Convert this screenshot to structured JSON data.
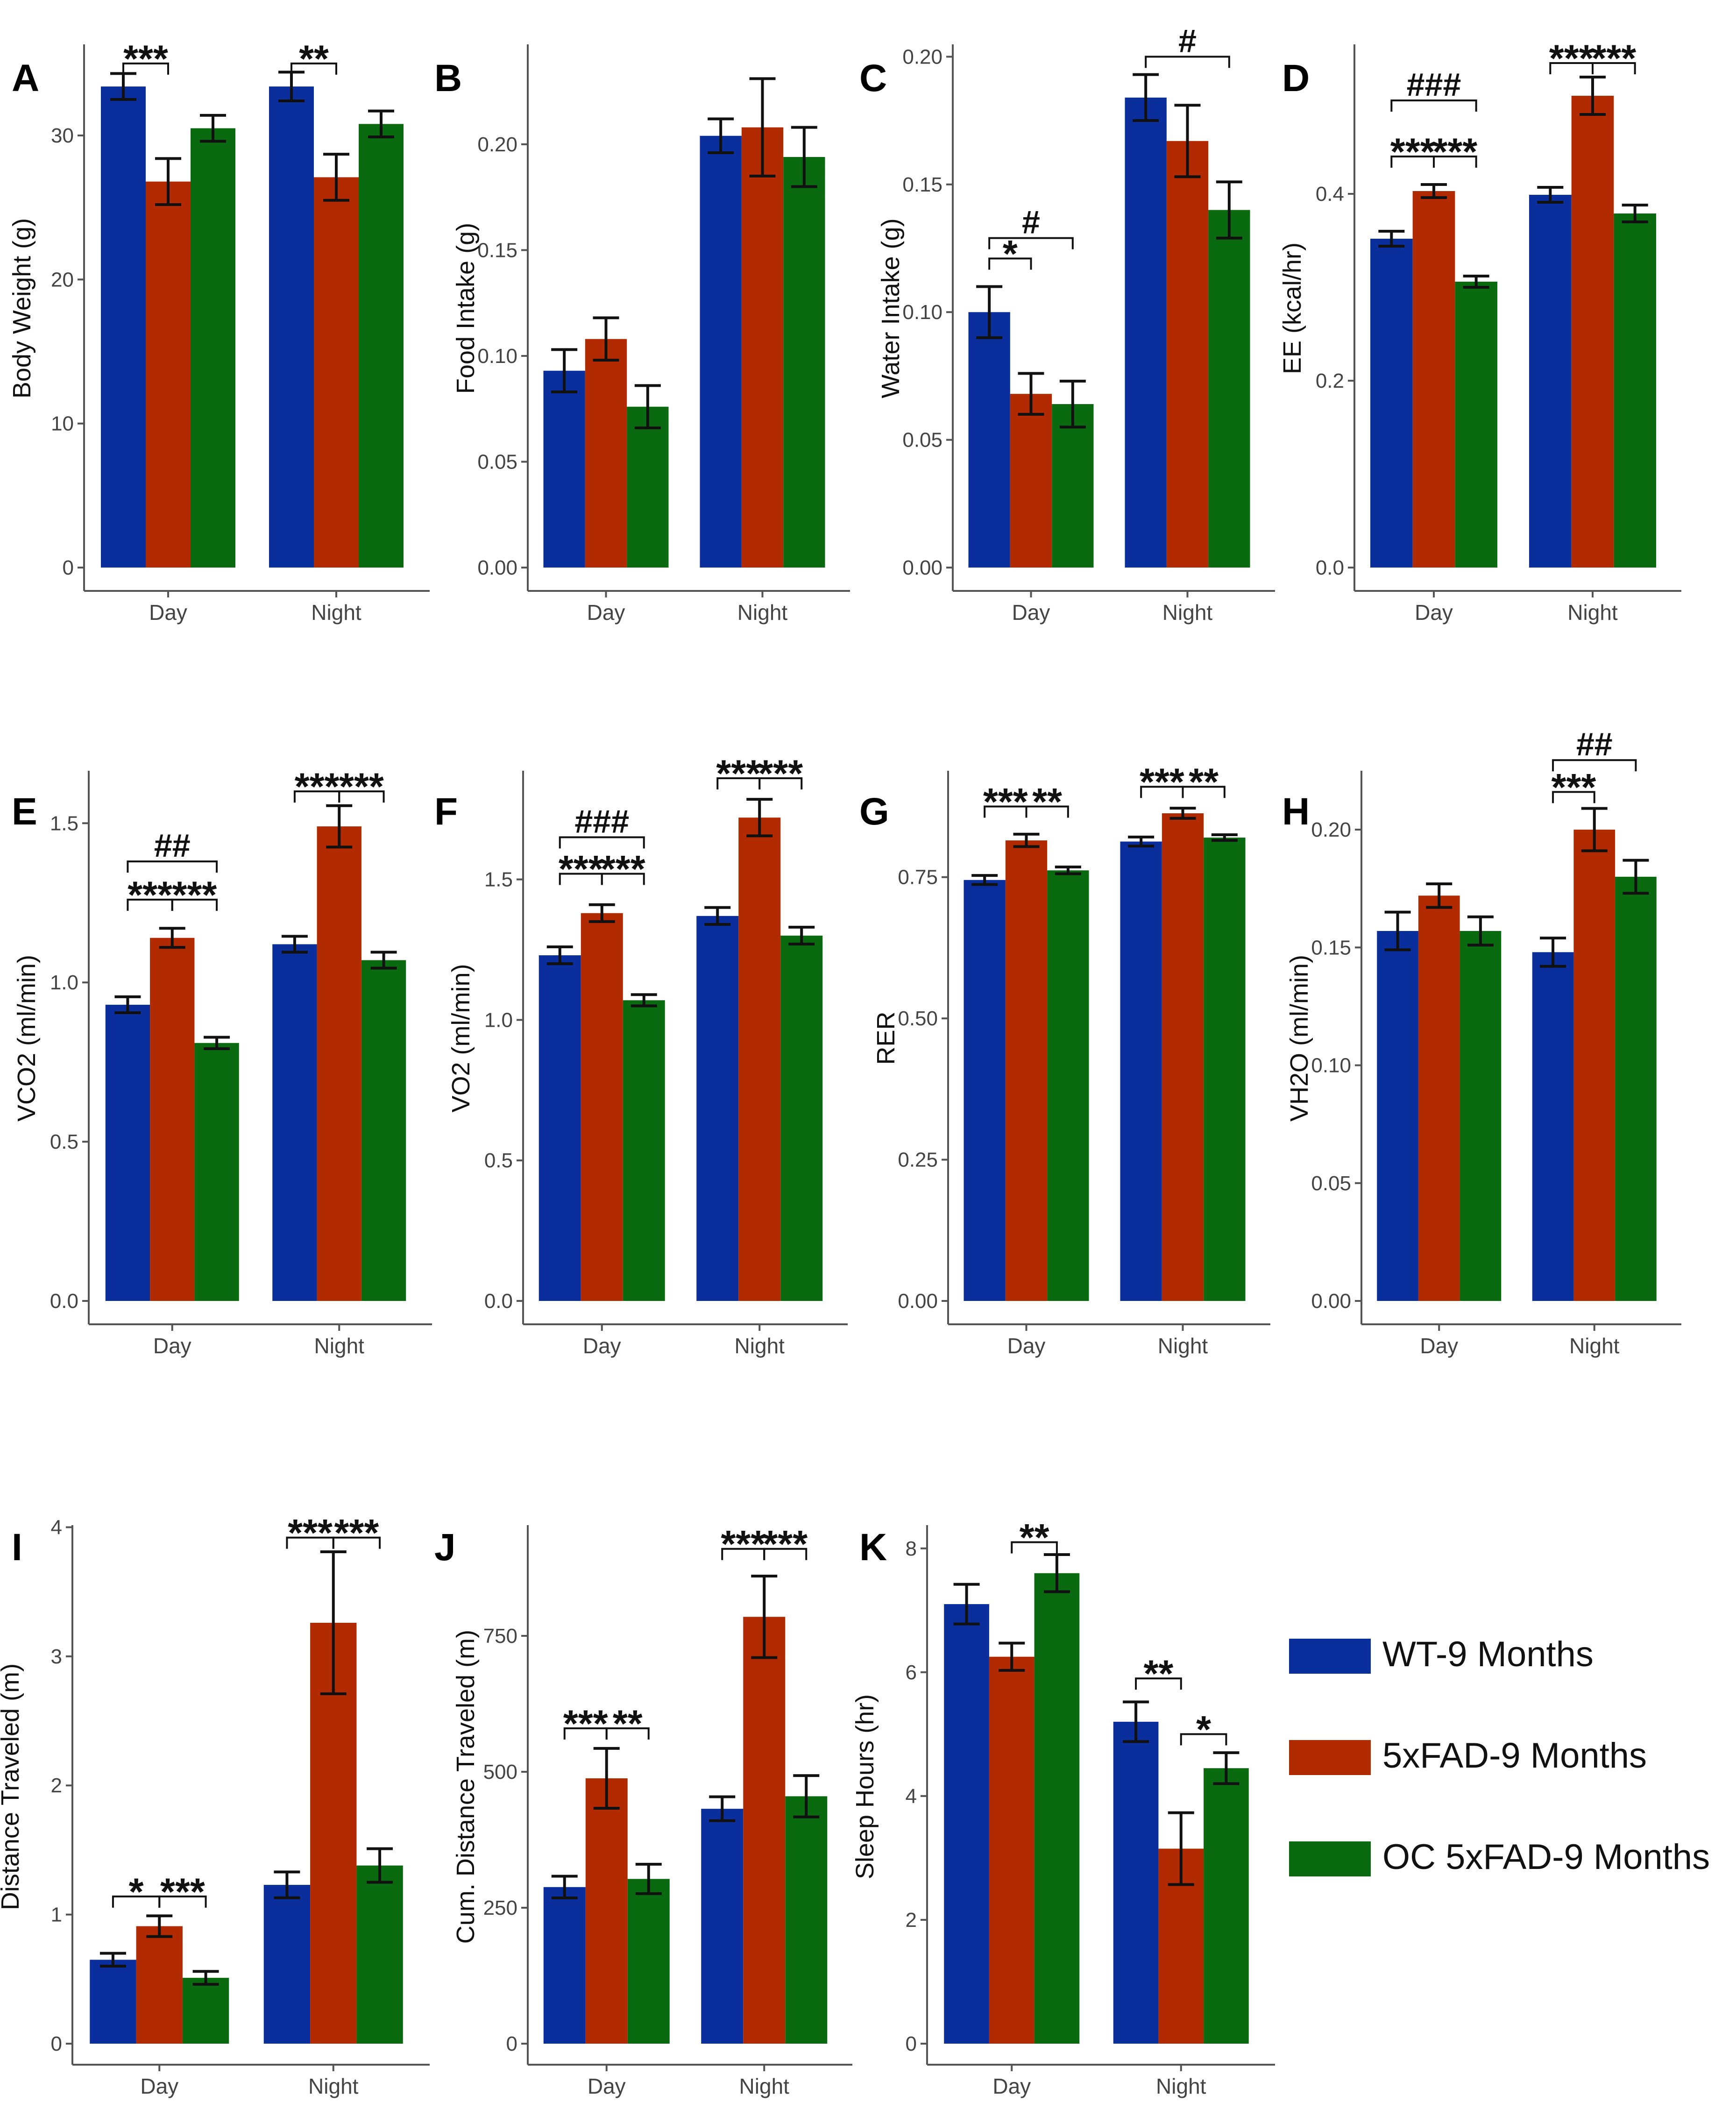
{
  "legend": {
    "items": [
      {
        "label": "WT-9 Months",
        "color": "#0A2F9C"
      },
      {
        "label": "5xFAD-9 Months",
        "color": "#B22A00"
      },
      {
        "label": "OC 5xFAD-9 Months",
        "color": "#0A6A10"
      }
    ]
  },
  "chart_data": [
    {
      "panel": "A",
      "type": "bar",
      "categories": [
        "Day",
        "Night"
      ],
      "ylabel": "Body Weight (g)",
      "ylim": [
        0,
        36
      ],
      "yticks": [
        0,
        10,
        20,
        30
      ],
      "yticklabels": [
        "0",
        "10",
        "20",
        "30"
      ],
      "series": [
        {
          "values": [
            33.4,
            33.4
          ],
          "err": [
            0.9,
            1.0
          ]
        },
        {
          "values": [
            26.8,
            27.1
          ],
          "err": [
            1.6,
            1.6
          ]
        },
        {
          "values": [
            30.5,
            30.8
          ],
          "err": [
            0.9,
            0.9
          ]
        }
      ],
      "annotations": [
        {
          "text": "***",
          "category": 0,
          "from": 0,
          "to": 1,
          "y": 35.0
        },
        {
          "text": "**",
          "category": 1,
          "from": 0,
          "to": 1,
          "y": 35.0
        }
      ]
    },
    {
      "panel": "B",
      "type": "bar",
      "categories": [
        "Day",
        "Night"
      ],
      "ylabel": "Food Intake (g)",
      "ylim": [
        0,
        0.245
      ],
      "yticks": [
        0,
        0.05,
        0.1,
        0.15,
        0.2
      ],
      "yticklabels": [
        "0.00",
        "0.05",
        "0.10",
        "0.15",
        "0.20"
      ],
      "series": [
        {
          "values": [
            0.093,
            0.204
          ],
          "err": [
            0.01,
            0.008
          ]
        },
        {
          "values": [
            0.108,
            0.208
          ],
          "err": [
            0.01,
            0.023
          ]
        },
        {
          "values": [
            0.076,
            0.194
          ],
          "err": [
            0.01,
            0.014
          ]
        }
      ],
      "annotations": []
    },
    {
      "panel": "C",
      "type": "bar",
      "categories": [
        "Day",
        "Night"
      ],
      "ylabel": "Water Intake (g)",
      "ylim": [
        0,
        0.203
      ],
      "yticks": [
        0,
        0.05,
        0.1,
        0.15,
        0.2
      ],
      "yticklabels": [
        "0.00",
        "0.05",
        "0.10",
        "0.15",
        "0.20"
      ],
      "series": [
        {
          "values": [
            0.1,
            0.184
          ],
          "err": [
            0.01,
            0.009
          ]
        },
        {
          "values": [
            0.068,
            0.167
          ],
          "err": [
            0.008,
            0.014
          ]
        },
        {
          "values": [
            0.064,
            0.14
          ],
          "err": [
            0.009,
            0.011
          ]
        }
      ],
      "annotations": [
        {
          "text": "*",
          "category": 0,
          "from": 0,
          "to": 1,
          "y": 0.121
        },
        {
          "text": "#",
          "category": 0,
          "from": 0,
          "to": 2,
          "y": 0.129
        },
        {
          "text": "#",
          "category": 1,
          "from": 0,
          "to": 2,
          "y": 0.2
        }
      ]
    },
    {
      "panel": "D",
      "type": "bar",
      "categories": [
        "Day",
        "Night"
      ],
      "ylabel": "EE (kcal/hr)",
      "ylim": [
        0,
        0.555
      ],
      "yticks": [
        0,
        0.2,
        0.4
      ],
      "yticklabels": [
        "0.0",
        "0.2",
        "0.4"
      ],
      "series": [
        {
          "values": [
            0.352,
            0.399
          ],
          "err": [
            0.008,
            0.008
          ]
        },
        {
          "values": [
            0.403,
            0.505
          ],
          "err": [
            0.007,
            0.02
          ]
        },
        {
          "values": [
            0.306,
            0.379
          ],
          "err": [
            0.006,
            0.009
          ]
        }
      ],
      "annotations": [
        {
          "text": "***",
          "category": 0,
          "from": 0,
          "to": 1,
          "y": 0.44
        },
        {
          "text": "***",
          "category": 0,
          "from": 1,
          "to": 2,
          "y": 0.44
        },
        {
          "text": "###",
          "category": 0,
          "from": 0,
          "to": 2,
          "y": 0.5
        },
        {
          "text": "***",
          "category": 1,
          "from": 0,
          "to": 1,
          "y": 0.54
        },
        {
          "text": "***",
          "category": 1,
          "from": 1,
          "to": 2,
          "y": 0.54
        }
      ]
    },
    {
      "panel": "E",
      "type": "bar",
      "categories": [
        "Day",
        "Night"
      ],
      "ylabel": "VCO2 (ml/min)",
      "ylim": [
        0,
        1.65
      ],
      "yticks": [
        0,
        0.5,
        1.0,
        1.5
      ],
      "yticklabels": [
        "0.0",
        "0.5",
        "1.0",
        "1.5"
      ],
      "series": [
        {
          "values": [
            0.93,
            1.12
          ],
          "err": [
            0.025,
            0.025
          ]
        },
        {
          "values": [
            1.14,
            1.49
          ],
          "err": [
            0.03,
            0.065
          ]
        },
        {
          "values": [
            0.81,
            1.07
          ],
          "err": [
            0.018,
            0.025
          ]
        }
      ],
      "annotations": [
        {
          "text": "***",
          "category": 0,
          "from": 0,
          "to": 1,
          "y": 1.26
        },
        {
          "text": "***",
          "category": 0,
          "from": 1,
          "to": 2,
          "y": 1.26
        },
        {
          "text": "##",
          "category": 0,
          "from": 0,
          "to": 2,
          "y": 1.38
        },
        {
          "text": "***",
          "category": 1,
          "from": 0,
          "to": 1,
          "y": 1.6
        },
        {
          "text": "***",
          "category": 1,
          "from": 1,
          "to": 2,
          "y": 1.6
        }
      ]
    },
    {
      "panel": "F",
      "type": "bar",
      "categories": [
        "Day",
        "Night"
      ],
      "ylabel": "VO2 (ml/min)",
      "ylim": [
        0,
        1.87
      ],
      "yticks": [
        0,
        0.5,
        1.0,
        1.5
      ],
      "yticklabels": [
        "0.0",
        "0.5",
        "1.0",
        "1.5"
      ],
      "series": [
        {
          "values": [
            1.23,
            1.37
          ],
          "err": [
            0.03,
            0.03
          ]
        },
        {
          "values": [
            1.38,
            1.72
          ],
          "err": [
            0.03,
            0.065
          ]
        },
        {
          "values": [
            1.07,
            1.3
          ],
          "err": [
            0.02,
            0.03
          ]
        }
      ],
      "annotations": [
        {
          "text": "***",
          "category": 0,
          "from": 0,
          "to": 1,
          "y": 1.52
        },
        {
          "text": "***",
          "category": 0,
          "from": 1,
          "to": 2,
          "y": 1.52
        },
        {
          "text": "###",
          "category": 0,
          "from": 0,
          "to": 2,
          "y": 1.65
        },
        {
          "text": "***",
          "category": 1,
          "from": 0,
          "to": 1,
          "y": 1.86
        },
        {
          "text": "***",
          "category": 1,
          "from": 1,
          "to": 2,
          "y": 1.86
        }
      ]
    },
    {
      "panel": "G",
      "type": "bar",
      "categories": [
        "Day",
        "Night"
      ],
      "ylabel": "RER",
      "ylim": [
        0,
        0.93
      ],
      "yticks": [
        0,
        0.25,
        0.5,
        0.75
      ],
      "yticklabels": [
        "0.00",
        "0.25",
        "0.50",
        "0.75"
      ],
      "series": [
        {
          "values": [
            0.745,
            0.813
          ],
          "err": [
            0.008,
            0.008
          ]
        },
        {
          "values": [
            0.815,
            0.863
          ],
          "err": [
            0.011,
            0.009
          ]
        },
        {
          "values": [
            0.762,
            0.82
          ],
          "err": [
            0.006,
            0.005
          ]
        }
      ],
      "annotations": [
        {
          "text": "***",
          "category": 0,
          "from": 0,
          "to": 1,
          "y": 0.875
        },
        {
          "text": "**",
          "category": 0,
          "from": 1,
          "to": 2,
          "y": 0.875
        },
        {
          "text": "***",
          "category": 1,
          "from": 0,
          "to": 1,
          "y": 0.91
        },
        {
          "text": "**",
          "category": 1,
          "from": 1,
          "to": 2,
          "y": 0.91
        }
      ]
    },
    {
      "panel": "H",
      "type": "bar",
      "categories": [
        "Day",
        "Night"
      ],
      "ylabel": "VH2O (ml/min)",
      "ylim": [
        0,
        0.223
      ],
      "yticks": [
        0,
        0.05,
        0.1,
        0.15,
        0.2
      ],
      "yticklabels": [
        "0.00",
        "0.05",
        "0.10",
        "0.15",
        "0.20"
      ],
      "series": [
        {
          "values": [
            0.157,
            0.148
          ],
          "err": [
            0.008,
            0.006
          ]
        },
        {
          "values": [
            0.172,
            0.2
          ],
          "err": [
            0.005,
            0.009
          ]
        },
        {
          "values": [
            0.157,
            0.18
          ],
          "err": [
            0.006,
            0.007
          ]
        }
      ],
      "annotations": [
        {
          "text": "***",
          "category": 1,
          "from": 0,
          "to": 1,
          "y": 0.216
        },
        {
          "text": "##",
          "category": 1,
          "from": 0,
          "to": 2,
          "y": 0.2295
        }
      ]
    },
    {
      "panel": "I",
      "type": "bar",
      "categories": [
        "Day",
        "Night"
      ],
      "ylabel": "Distance Traveled (m)",
      "ylim": [
        0,
        3.98
      ],
      "yticks": [
        0,
        1,
        2,
        3,
        4
      ],
      "yticklabels": [
        "0",
        "1",
        "2",
        "3",
        "4"
      ],
      "series": [
        {
          "values": [
            0.65,
            1.23
          ],
          "err": [
            0.05,
            0.1
          ]
        },
        {
          "values": [
            0.91,
            3.26
          ],
          "err": [
            0.08,
            0.55
          ]
        },
        {
          "values": [
            0.51,
            1.38
          ],
          "err": [
            0.05,
            0.13
          ]
        }
      ],
      "annotations": [
        {
          "text": "*",
          "category": 0,
          "from": 0,
          "to": 1,
          "y": 1.14
        },
        {
          "text": "***",
          "category": 0,
          "from": 1,
          "to": 2,
          "y": 1.14
        },
        {
          "text": "***",
          "category": 1,
          "from": 0,
          "to": 1,
          "y": 3.92
        },
        {
          "text": "***",
          "category": 1,
          "from": 1,
          "to": 2,
          "y": 3.92
        }
      ]
    },
    {
      "panel": "J",
      "type": "bar",
      "categories": [
        "Day",
        "Night"
      ],
      "ylabel": "Cum. Distance Traveled (m)",
      "ylim": [
        0,
        945
      ],
      "yticks": [
        0,
        250,
        500,
        750
      ],
      "yticklabels": [
        "0",
        "250",
        "500",
        "750"
      ],
      "series": [
        {
          "values": [
            288,
            432
          ],
          "err": [
            20,
            22
          ]
        },
        {
          "values": [
            488,
            785
          ],
          "err": [
            55,
            75
          ]
        },
        {
          "values": [
            303,
            455
          ],
          "err": [
            27,
            38
          ]
        }
      ],
      "annotations": [
        {
          "text": "***",
          "category": 0,
          "from": 0,
          "to": 1,
          "y": 580
        },
        {
          "text": "**",
          "category": 0,
          "from": 1,
          "to": 2,
          "y": 580
        },
        {
          "text": "***",
          "category": 1,
          "from": 0,
          "to": 1,
          "y": 910
        },
        {
          "text": "***",
          "category": 1,
          "from": 1,
          "to": 2,
          "y": 910
        }
      ]
    },
    {
      "panel": "K",
      "type": "bar",
      "categories": [
        "Day",
        "Night"
      ],
      "ylabel": "Sleep Hours (hr)",
      "ylim": [
        0,
        8.3
      ],
      "yticks": [
        0,
        2,
        4,
        6,
        8
      ],
      "yticklabels": [
        "0",
        "2",
        "4",
        "6",
        "8"
      ],
      "series": [
        {
          "values": [
            7.1,
            5.2
          ],
          "err": [
            0.32,
            0.32
          ]
        },
        {
          "values": [
            6.25,
            3.15
          ],
          "err": [
            0.22,
            0.58
          ]
        },
        {
          "values": [
            7.6,
            4.45
          ],
          "err": [
            0.3,
            0.25
          ]
        }
      ],
      "annotations": [
        {
          "text": "**",
          "category": 0,
          "from": 1,
          "to": 2,
          "y": 8.1
        },
        {
          "text": "**",
          "category": 1,
          "from": 0,
          "to": 1,
          "y": 5.9
        },
        {
          "text": "*",
          "category": 1,
          "from": 1,
          "to": 2,
          "y": 5.0
        }
      ]
    }
  ]
}
